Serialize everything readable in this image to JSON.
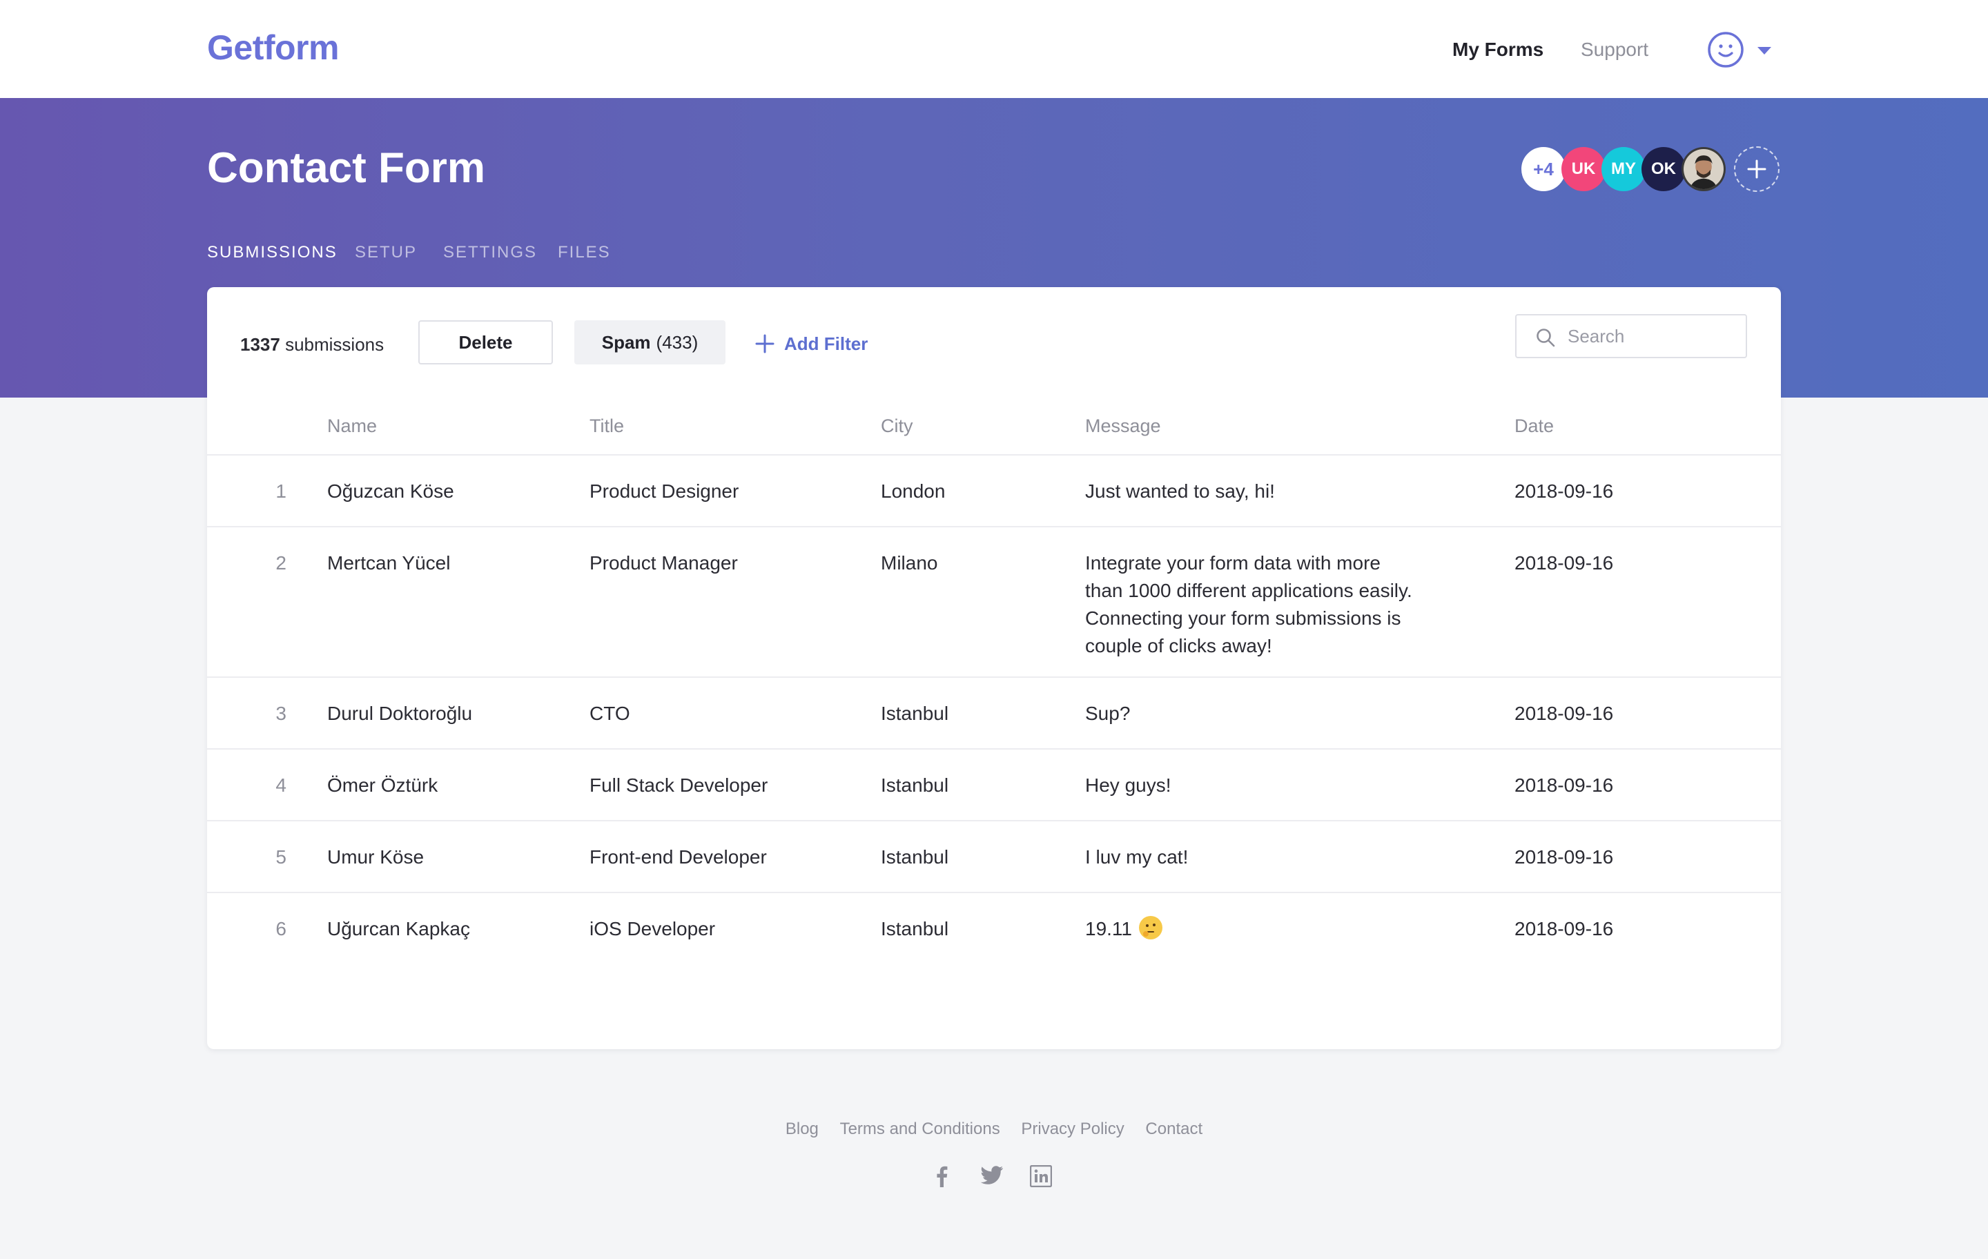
{
  "brand": {
    "logo": "Getform",
    "accent": "#6a72d8"
  },
  "nav": {
    "my_forms": "My Forms",
    "support": "Support",
    "user_icon": "smiley-avatar-icon"
  },
  "form": {
    "title": "Contact Form",
    "tabs": [
      "SUBMISSIONS",
      "SETUP",
      "SETTINGS",
      "FILES"
    ],
    "active_tab": "SUBMISSIONS",
    "collaborators": [
      {
        "label": "+4",
        "color": "#ffffff"
      },
      {
        "label": "UK",
        "color": "#f2467a"
      },
      {
        "label": "MY",
        "color": "#15c9db"
      },
      {
        "label": "OK",
        "color": "#1d1f4a"
      },
      {
        "label": "",
        "color": "#3b3b3b"
      }
    ]
  },
  "toolbar": {
    "count": "1337",
    "count_label": "submissions",
    "delete": "Delete",
    "spam_label": "Spam",
    "spam_count": "(433)",
    "add_filter": "Add Filter",
    "search_placeholder": "Search"
  },
  "table": {
    "columns": [
      "Name",
      "Title",
      "City",
      "Message",
      "Date"
    ],
    "rows": [
      {
        "idx": "1",
        "name": "Oğuzcan Köse",
        "title": "Product Designer",
        "city": "London",
        "message": "Just wanted to say, hi!",
        "date": "2018-09-16"
      },
      {
        "idx": "2",
        "name": "Mertcan Yücel",
        "title": "Product Manager",
        "city": "Milano",
        "message": "Integrate your form data with more than 1000 different applications easily. Connecting your form submissions is couple of clicks away!",
        "date": "2018-09-16"
      },
      {
        "idx": "3",
        "name": "Durul Doktoroğlu",
        "title": "CTO",
        "city": "Istanbul",
        "message": "Sup?",
        "date": "2018-09-16"
      },
      {
        "idx": "4",
        "name": "Ömer Öztürk",
        "title": "Full Stack Developer",
        "city": "Istanbul",
        "message": "Hey guys!",
        "date": "2018-09-16"
      },
      {
        "idx": "5",
        "name": "Umur Köse",
        "title": "Front-end Developer",
        "city": "Istanbul",
        "message": "I luv my cat!",
        "date": "2018-09-16"
      },
      {
        "idx": "6",
        "name": "Uğurcan Kapkaç",
        "title": "iOS Developer",
        "city": "Istanbul",
        "message": "19.11",
        "date": "2018-09-16"
      }
    ]
  },
  "footer": {
    "links": [
      "Blog",
      "Terms and Conditions",
      "Privacy Policy",
      "Contact"
    ],
    "social": [
      "facebook-icon",
      "twitter-icon",
      "linkedin-icon"
    ]
  }
}
